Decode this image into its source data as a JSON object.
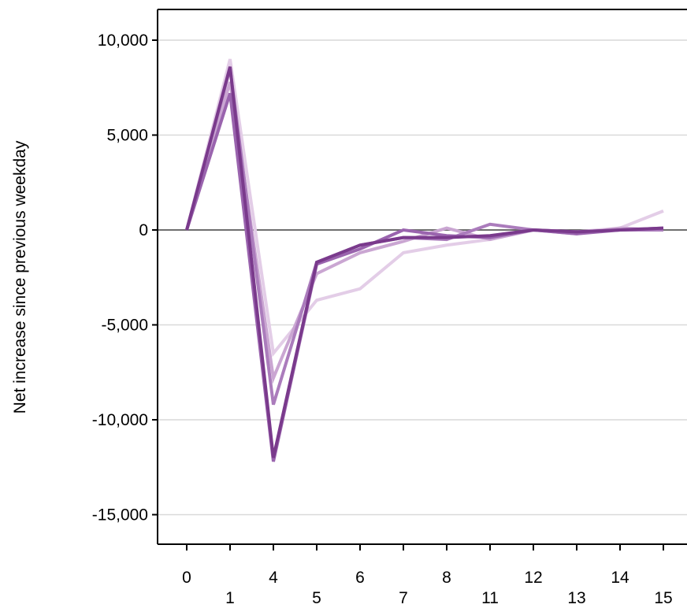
{
  "chart_data": {
    "type": "line",
    "title": "",
    "xlabel": "",
    "ylabel": "Net increase since previous weekday",
    "categories": [
      "0",
      "1",
      "4",
      "5",
      "6",
      "7",
      "8",
      "11",
      "12",
      "13",
      "14",
      "15"
    ],
    "yticks": [
      10000,
      5000,
      0,
      -5000,
      -10000,
      -15000
    ],
    "ytick_labels": [
      "10,000",
      "5,000",
      "0",
      "-5,000",
      "-10,000",
      "-15,000"
    ],
    "ylim": [
      -16200,
      11600
    ],
    "grid": true,
    "legend": "none",
    "series": [
      {
        "color": "#e3cde7",
        "values": [
          0,
          9000,
          -6500,
          -3700,
          -3100,
          -1200,
          -800,
          -500,
          0,
          -100,
          100,
          1000
        ]
      },
      {
        "color": "#caa6d2",
        "values": [
          0,
          7800,
          -7800,
          -2300,
          -1200,
          -600,
          100,
          -500,
          0,
          -200,
          100,
          0
        ]
      },
      {
        "color": "#ab7cbc",
        "values": [
          0,
          8500,
          -9200,
          -1700,
          -800,
          -400,
          -500,
          300,
          0,
          -100,
          0,
          0
        ]
      },
      {
        "color": "#9a64ae",
        "values": [
          0,
          7200,
          -12200,
          -1800,
          -1000,
          0,
          -300,
          -400,
          0,
          -200,
          0,
          100
        ]
      },
      {
        "color": "#7a3a8c",
        "values": [
          0,
          8600,
          -12000,
          -1700,
          -800,
          -400,
          -400,
          -300,
          0,
          -100,
          0,
          100
        ]
      }
    ],
    "colors": {
      "grid": "#d9d9d9",
      "zero_line": "#6e6e6e",
      "axis": "#000000"
    }
  }
}
